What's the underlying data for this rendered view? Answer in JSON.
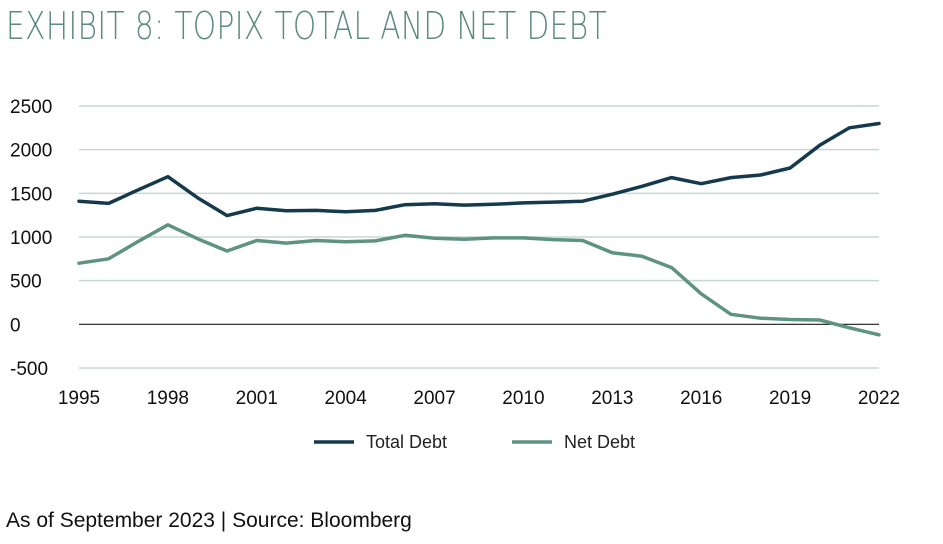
{
  "header": {
    "title": "EXHIBIT 8: TOPIX TOTAL AND NET DEBT"
  },
  "footer": {
    "source": "As of September 2023 | Source: Bloomberg"
  },
  "chart_data": {
    "type": "line",
    "title": "EXHIBIT 8: TOPIX TOTAL AND NET DEBT",
    "xlabel": "",
    "ylabel": "",
    "xlim": [
      1995,
      2022
    ],
    "ylim": [
      -500,
      2500
    ],
    "xticks": [
      1995,
      1998,
      2001,
      2004,
      2007,
      2010,
      2013,
      2016,
      2019,
      2022
    ],
    "yticks": [
      -500,
      0,
      500,
      1000,
      1500,
      2000,
      2500
    ],
    "grid": "horizontal",
    "legend": "bottom",
    "x": [
      1995,
      1996,
      1997,
      1998,
      1999,
      2000,
      2001,
      2002,
      2003,
      2004,
      2005,
      2006,
      2007,
      2008,
      2009,
      2010,
      2011,
      2012,
      2013,
      2014,
      2015,
      2016,
      2017,
      2018,
      2019,
      2020,
      2021,
      2022
    ],
    "series": [
      {
        "name": "Total Debt",
        "color": "#163a4d",
        "values": [
          1410,
          1385,
          1540,
          1690,
          1450,
          1245,
          1330,
          1300,
          1305,
          1290,
          1305,
          1370,
          1380,
          1365,
          1375,
          1390,
          1400,
          1410,
          1490,
          1580,
          1680,
          1610,
          1680,
          1710,
          1790,
          2050,
          2250,
          2300
        ]
      },
      {
        "name": "Net Debt",
        "color": "#5e9383",
        "values": [
          700,
          750,
          950,
          1140,
          980,
          840,
          960,
          930,
          960,
          945,
          955,
          1020,
          985,
          975,
          990,
          990,
          970,
          960,
          820,
          780,
          650,
          350,
          115,
          70,
          55,
          50,
          -40,
          -120
        ]
      }
    ]
  }
}
